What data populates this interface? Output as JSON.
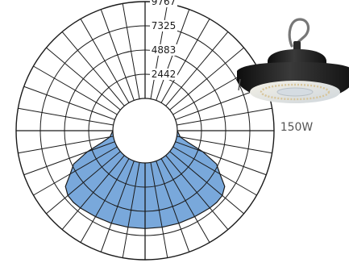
{
  "product": {
    "wattage_label": "150W",
    "image": "ufo-high-bay-light-icon"
  },
  "chart_data": {
    "type": "polar",
    "title": "",
    "radial_ticks": [
      "2442",
      "4883",
      "7325",
      "9767"
    ],
    "radial_max": 9767,
    "angular_grid_deg": 10,
    "grid": true,
    "fill_color": "#79a8db",
    "grid_color": "#1a1a1a",
    "series": [
      {
        "angles_deg": [
          0,
          10,
          20,
          30,
          40,
          45,
          50,
          55,
          60,
          65,
          70,
          75,
          80,
          90
        ],
        "values": [
          6620,
          6635,
          6690,
          6760,
          6920,
          6980,
          6920,
          6560,
          5480,
          4700,
          2950,
          1200,
          350,
          0
        ]
      }
    ]
  }
}
